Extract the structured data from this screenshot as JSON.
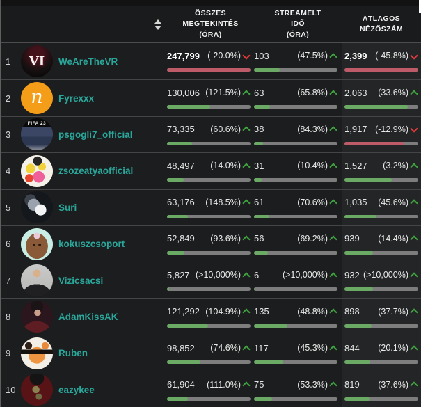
{
  "header": {
    "sort_icon": "sort-both-icon",
    "columns": [
      {
        "label": "ÖSSZES\nMEGTEKINTÉS\n(ÓRA)"
      },
      {
        "label": "STREAMELT\nIDŐ\n(ÓRA)"
      },
      {
        "label": "ÁTLAGOS\nNÉZŐSZÁM"
      }
    ]
  },
  "rows": [
    {
      "rank": "1",
      "channel": "WeAreTheVR",
      "avatar": {
        "icon": "wearethevr-logo-avatar",
        "label": "VI"
      },
      "metrics": [
        {
          "value": "247,799",
          "change": "(-20.0%)",
          "direction": "down",
          "bar_pct": 100,
          "bold": true
        },
        {
          "value": "103",
          "change": "(47.5%)",
          "direction": "up",
          "bar_pct": 31,
          "bold": false
        },
        {
          "value": "2,399",
          "change": "(-45.8%)",
          "direction": "down",
          "bar_pct": 100,
          "bold": true
        }
      ]
    },
    {
      "rank": "2",
      "channel": "Fyrexxx",
      "avatar": {
        "icon": "fyrexxx-logo-avatar",
        "label": "n"
      },
      "metrics": [
        {
          "value": "130,006",
          "change": "(121.5%)",
          "direction": "up",
          "bar_pct": 52,
          "bold": false
        },
        {
          "value": "63",
          "change": "(65.8%)",
          "direction": "up",
          "bar_pct": 19,
          "bold": false
        },
        {
          "value": "2,063",
          "change": "(33.6%)",
          "direction": "up",
          "bar_pct": 86,
          "bold": false
        }
      ]
    },
    {
      "rank": "3",
      "channel": "psgogli7_official",
      "avatar": {
        "icon": "psgogli7-fifa-photo-avatar",
        "label": "FIFA 23"
      },
      "metrics": [
        {
          "value": "73,335",
          "change": "(60.6%)",
          "direction": "up",
          "bar_pct": 30,
          "bold": false
        },
        {
          "value": "38",
          "change": "(84.3%)",
          "direction": "up",
          "bar_pct": 11,
          "bold": false
        },
        {
          "value": "1,917",
          "change": "(-12.9%)",
          "direction": "down",
          "bar_pct": 80,
          "bold": false
        }
      ]
    },
    {
      "rank": "4",
      "channel": "zsozeatyaofficial",
      "avatar": {
        "icon": "zsozeatya-art-avatar",
        "label": ""
      },
      "metrics": [
        {
          "value": "48,497",
          "change": "(14.0%)",
          "direction": "up",
          "bar_pct": 20,
          "bold": false
        },
        {
          "value": "31",
          "change": "(10.4%)",
          "direction": "up",
          "bar_pct": 9,
          "bold": false
        },
        {
          "value": "1,527",
          "change": "(3.2%)",
          "direction": "up",
          "bar_pct": 64,
          "bold": false
        }
      ]
    },
    {
      "rank": "5",
      "channel": "Suri",
      "avatar": {
        "icon": "suri-wolf-avatar",
        "label": ""
      },
      "metrics": [
        {
          "value": "63,176",
          "change": "(148.5%)",
          "direction": "up",
          "bar_pct": 25,
          "bold": false
        },
        {
          "value": "61",
          "change": "(70.6%)",
          "direction": "up",
          "bar_pct": 18,
          "bold": false
        },
        {
          "value": "1,035",
          "change": "(45.6%)",
          "direction": "up",
          "bar_pct": 43,
          "bold": false
        }
      ]
    },
    {
      "rank": "6",
      "channel": "kokuszcsoport",
      "avatar": {
        "icon": "kokusz-coconut-avatar",
        "label": ""
      },
      "metrics": [
        {
          "value": "52,849",
          "change": "(93.6%)",
          "direction": "up",
          "bar_pct": 21,
          "bold": false
        },
        {
          "value": "56",
          "change": "(69.2%)",
          "direction": "up",
          "bar_pct": 17,
          "bold": false
        },
        {
          "value": "939",
          "change": "(14.4%)",
          "direction": "up",
          "bar_pct": 39,
          "bold": false
        }
      ]
    },
    {
      "rank": "7",
      "channel": "Vizicsacsi",
      "avatar": {
        "icon": "vizicsacsi-photo-avatar",
        "label": ""
      },
      "metrics": [
        {
          "value": "5,827",
          "change": "(>10,000%)",
          "direction": "up",
          "bar_pct": 2.5,
          "bold": false
        },
        {
          "value": "6",
          "change": "(>10,000%)",
          "direction": "up",
          "bar_pct": 2,
          "bold": false
        },
        {
          "value": "932",
          "change": "(>10,000%)",
          "direction": "up",
          "bar_pct": 39,
          "bold": false
        }
      ]
    },
    {
      "rank": "8",
      "channel": "AdamKissAK",
      "avatar": {
        "icon": "adamkiss-photo-avatar",
        "label": ""
      },
      "metrics": [
        {
          "value": "121,292",
          "change": "(104.9%)",
          "direction": "up",
          "bar_pct": 49,
          "bold": false
        },
        {
          "value": "135",
          "change": "(48.8%)",
          "direction": "up",
          "bar_pct": 40,
          "bold": false
        },
        {
          "value": "898",
          "change": "(37.7%)",
          "direction": "up",
          "bar_pct": 37,
          "bold": false
        }
      ]
    },
    {
      "rank": "9",
      "channel": "Ruben",
      "avatar": {
        "icon": "ruben-dog-sunglasses-avatar",
        "label": ""
      },
      "metrics": [
        {
          "value": "98,852",
          "change": "(74.6%)",
          "direction": "up",
          "bar_pct": 40,
          "bold": false
        },
        {
          "value": "117",
          "change": "(45.3%)",
          "direction": "up",
          "bar_pct": 35,
          "bold": false
        },
        {
          "value": "844",
          "change": "(20.1%)",
          "direction": "up",
          "bar_pct": 35,
          "bold": false
        }
      ]
    },
    {
      "rank": "10",
      "channel": "eazykee",
      "avatar": {
        "icon": "eazykee-art-avatar",
        "label": ""
      },
      "metrics": [
        {
          "value": "61,904",
          "change": "(111.0%)",
          "direction": "up",
          "bar_pct": 25,
          "bold": false
        },
        {
          "value": "75",
          "change": "(53.3%)",
          "direction": "up",
          "bar_pct": 22,
          "bold": false
        },
        {
          "value": "819",
          "change": "(37.6%)",
          "direction": "up",
          "bar_pct": 34,
          "bold": false
        }
      ]
    }
  ],
  "colors": {
    "channel_teal": "#2aa79b",
    "bar_green": "#6aaa64",
    "bar_red": "#bd5b68",
    "bar_track": "#7d7d7d",
    "arrow_green": "#3fa33f",
    "arrow_red": "#e23b3b",
    "row_bg": "#1c1d1e",
    "avg_column_bg": "#242526"
  }
}
